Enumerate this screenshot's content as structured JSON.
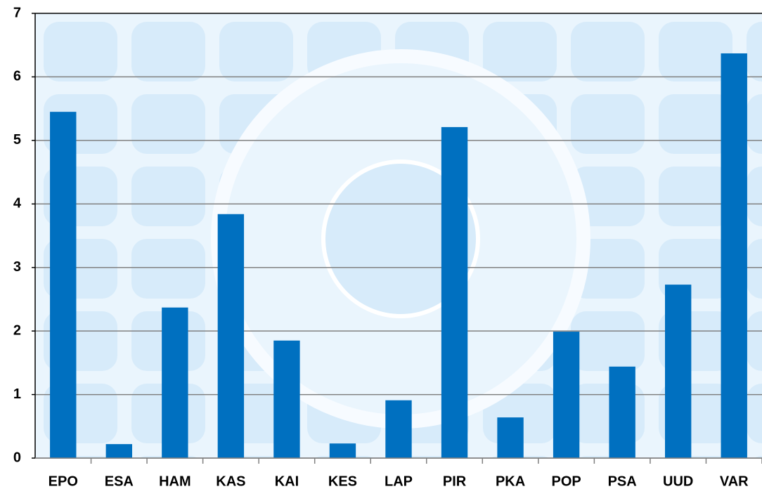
{
  "chart_data": {
    "type": "bar",
    "categories": [
      "EPO",
      "ESA",
      "HAM",
      "KAS",
      "KAI",
      "KES",
      "LAP",
      "PIR",
      "PKA",
      "POP",
      "PSA",
      "UUD",
      "VAR"
    ],
    "values": [
      5.45,
      0.22,
      2.37,
      3.84,
      1.85,
      0.23,
      0.91,
      5.21,
      0.64,
      1.99,
      1.44,
      2.73,
      6.37
    ],
    "color": "#0070c0",
    "ylim": [
      0,
      7
    ],
    "yticks": [
      0,
      1,
      2,
      3,
      4,
      5,
      6,
      7
    ],
    "grid": true
  }
}
